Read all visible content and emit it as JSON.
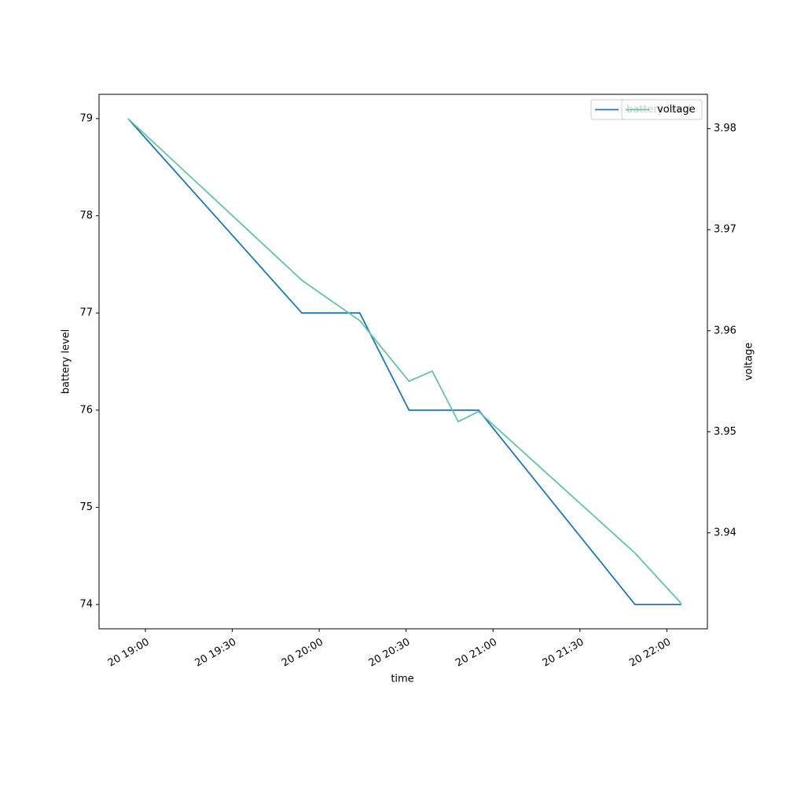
{
  "chart_data": {
    "type": "line",
    "x_label": "time",
    "y_label": "battery level",
    "y2_label": "voltage",
    "x": [
      "20 18:54",
      "20 19:54",
      "20 20:14",
      "20 20:31",
      "20 20:39",
      "20 20:48",
      "20 20:55",
      "20 21:49",
      "20 22:05"
    ],
    "series": [
      {
        "name": "battery level",
        "color": "#1f77b4",
        "values": [
          79,
          77,
          77,
          76,
          76,
          76,
          76,
          74,
          74
        ]
      },
      {
        "name": "voltage",
        "color": "#66c2a5",
        "axis": "y2",
        "values": [
          3.981,
          3.965,
          3.961,
          3.955,
          3.956,
          3.951,
          3.952,
          3.938,
          3.933
        ]
      }
    ],
    "xlim": [
      "20 18:44",
      "20 22:14"
    ],
    "xticks": [
      "20 19:00",
      "20 19:30",
      "20 20:00",
      "20 20:30",
      "20 21:00",
      "20 21:30",
      "20 22:00"
    ],
    "ylim": [
      73.75,
      79.25
    ],
    "yticks": [
      74,
      75,
      76,
      77,
      78,
      79
    ],
    "y2lim": [
      3.9305,
      3.9834
    ],
    "y2ticks": [
      3.94,
      3.95,
      3.96,
      3.97,
      3.98
    ],
    "legend": "upper right"
  }
}
